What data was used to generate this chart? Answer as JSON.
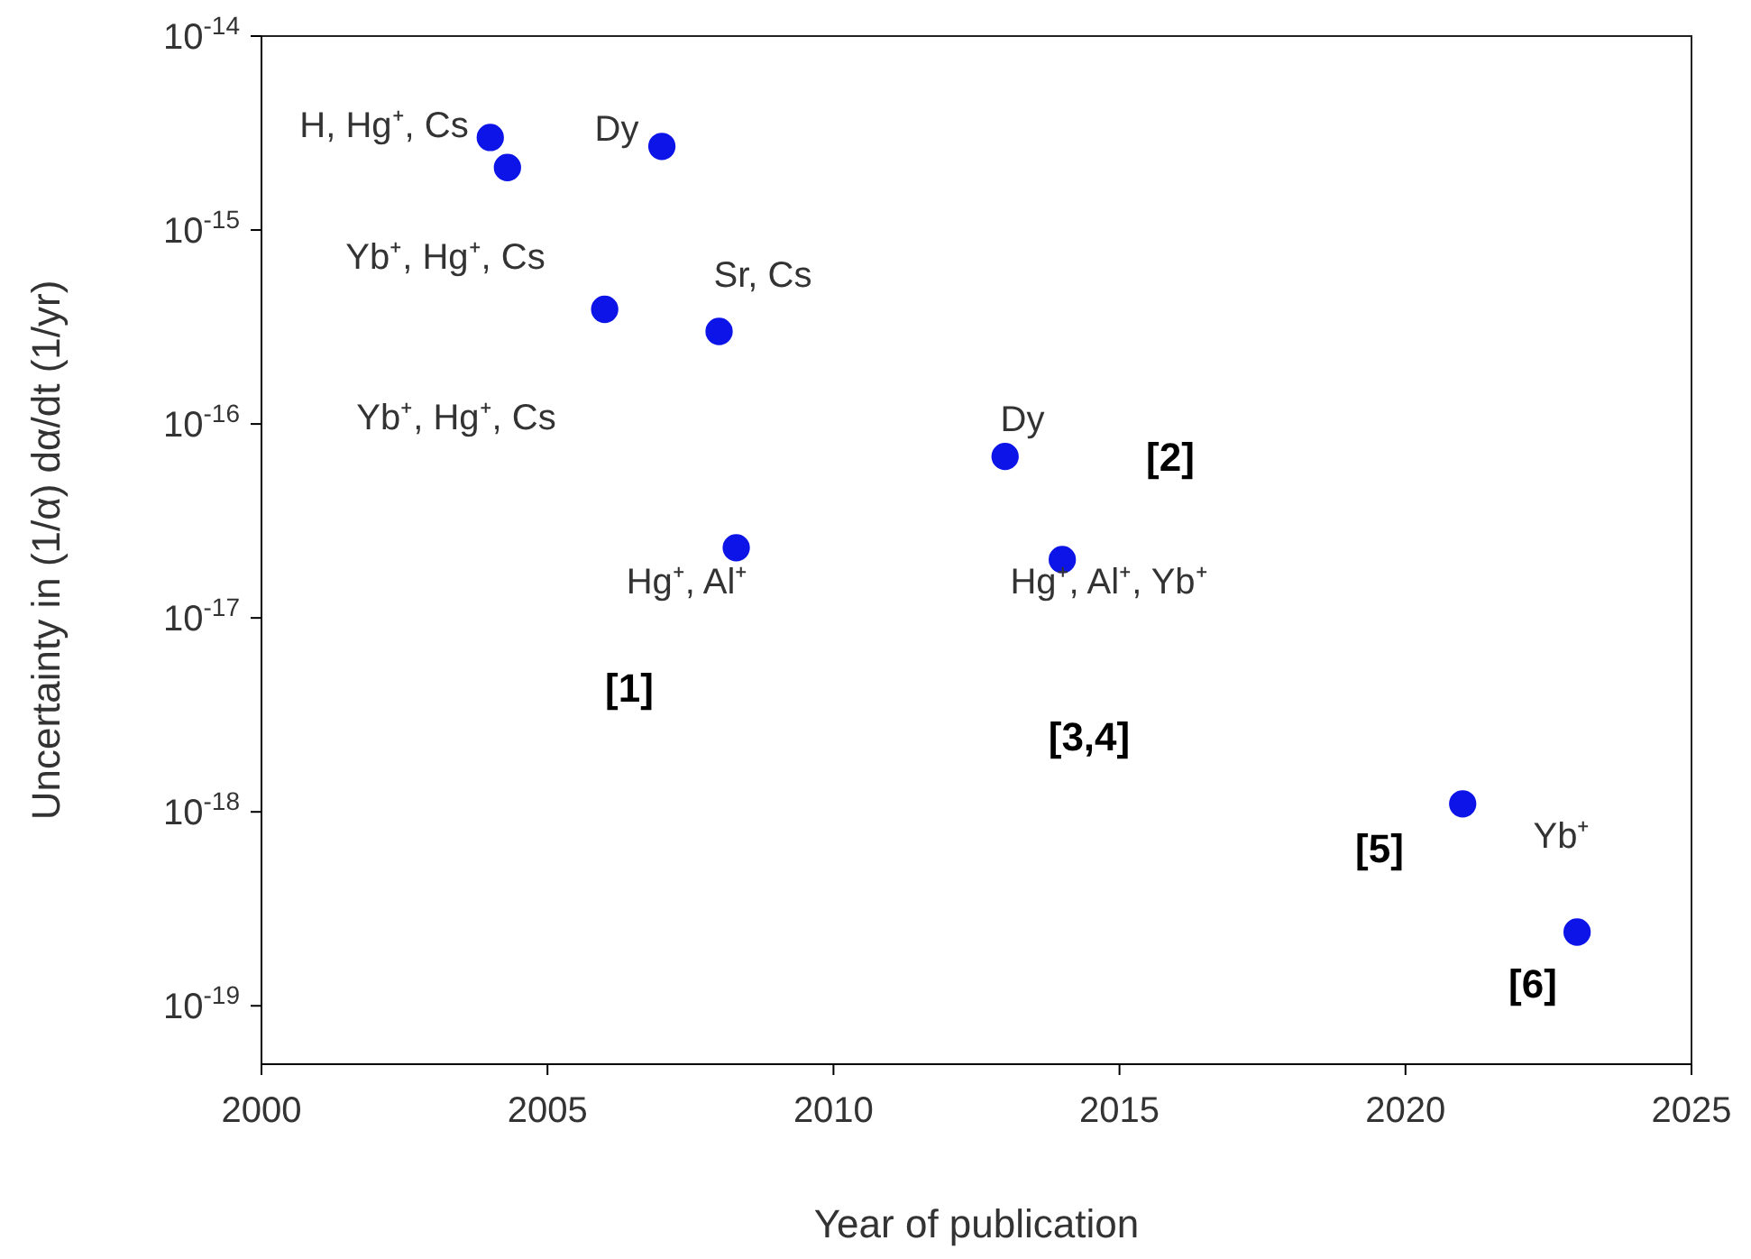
{
  "chart_data": {
    "type": "scatter",
    "xlabel": "Year of publication",
    "ylabel": "Uncertainty in (1/α) dα/dt (1/yr)",
    "log": "y",
    "grid": false,
    "marker": "circle",
    "x": [
      2004,
      2004.3,
      2007,
      2006,
      2008,
      2008.3,
      2013,
      2014,
      2021,
      2023
    ],
    "series": [
      {
        "color": "#0c14e8",
        "values": [
          3e-15,
          2.1e-15,
          2.7e-15,
          3.9e-16,
          3e-16,
          2.3e-17,
          6.8e-17,
          2e-17,
          1.1e-18,
          2.4e-19
        ]
      }
    ],
    "xlim": [
      2000,
      2025
    ],
    "xticks": [
      2000,
      2005,
      2010,
      2015,
      2020,
      2025
    ],
    "ylim": [
      5e-20,
      1e-14
    ],
    "yticks": [
      {
        "value": 1e-14,
        "label": "10$^{-14}$"
      },
      {
        "value": 1e-15,
        "label": "10$^{-15}$"
      },
      {
        "value": 1e-16,
        "label": "10$^{-16}$"
      },
      {
        "value": 1e-17,
        "label": "10$^{-17}$"
      },
      {
        "value": 1e-18,
        "label": "10$^{-18}$"
      },
      {
        "value": 1e-19,
        "label": "10$^{-19}$"
      }
    ],
    "annotations": [
      "H, Hg⁺, Cs",
      "Dy",
      "Yb⁺, Hg⁺, Cs",
      "Sr, Cs",
      "Yb⁺, Hg⁺, Cs",
      "Dy",
      "[2]",
      "Hg⁺, Al⁺",
      "[1]",
      "Hg⁺, Al⁺, Yb⁺",
      "[3,4]",
      "[5]",
      "Yb⁺",
      "[6]"
    ]
  }
}
